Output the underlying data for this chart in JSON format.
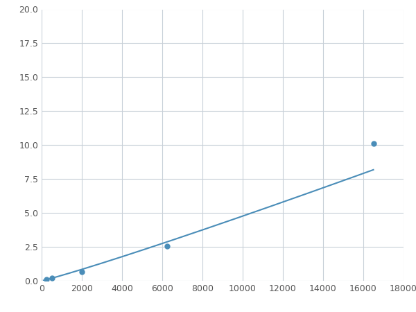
{
  "marker_x": [
    250,
    500,
    2000,
    6250,
    16500
  ],
  "marker_y": [
    0.1,
    0.2,
    0.65,
    2.55,
    10.1
  ],
  "line_color": "#4a8db8",
  "marker_color": "#4a8db8",
  "marker_size": 5,
  "xlim": [
    0,
    18000
  ],
  "ylim": [
    0,
    20.0
  ],
  "xticks": [
    0,
    2000,
    4000,
    6000,
    8000,
    10000,
    12000,
    14000,
    16000,
    18000
  ],
  "yticks": [
    0.0,
    2.5,
    5.0,
    7.5,
    10.0,
    12.5,
    15.0,
    17.5,
    20.0
  ],
  "grid_color": "#c8d0d8",
  "bg_color": "#ffffff",
  "figsize": [
    6.0,
    4.5
  ],
  "dpi": 100
}
